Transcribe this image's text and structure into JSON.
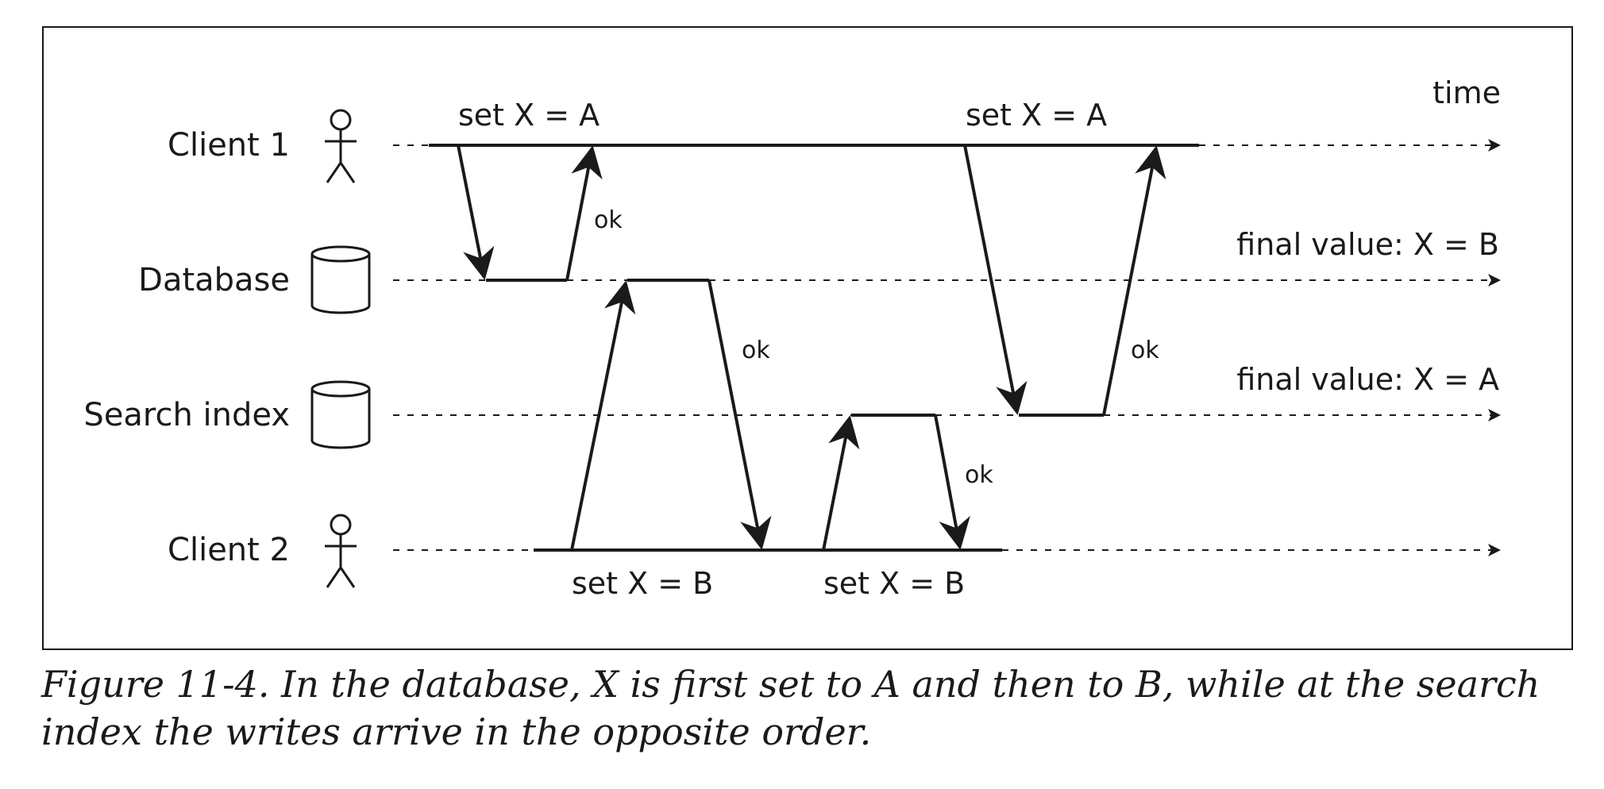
{
  "diagram": {
    "time_label": "time",
    "lanes": [
      {
        "label": "Client 1",
        "icon": "stick-figure-icon"
      },
      {
        "label": "Database",
        "icon": "database-cylinder-icon"
      },
      {
        "label": "Search index",
        "icon": "database-cylinder-icon"
      },
      {
        "label": "Client 2",
        "icon": "stick-figure-icon"
      }
    ],
    "operations": {
      "client1_write1": "set X = A",
      "client1_write2": "set X = A",
      "client2_write1": "set X = B",
      "client2_write2": "set X = B"
    },
    "acks": {
      "db_to_client1": "ok",
      "db_to_client2": "ok",
      "index_to_client2": "ok",
      "index_to_client1": "ok"
    },
    "final_values": {
      "database": "final value: X = B",
      "search_index": "final value: X = A"
    }
  },
  "caption": "Figure 11-4. In the database, X is first set to A and then to B, while at the search index the writes arrive in the opposite order."
}
